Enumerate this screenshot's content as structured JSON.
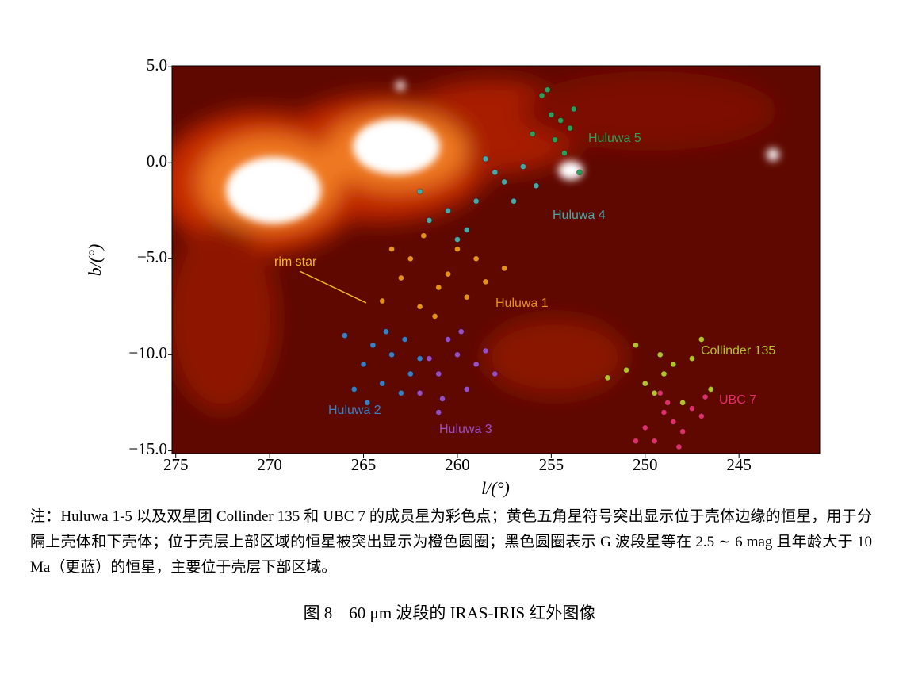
{
  "chart_data": {
    "type": "scatter",
    "xlabel": "l/(°)",
    "ylabel": "b/(°)",
    "xlim": [
      275.2,
      240.7
    ],
    "ylim": [
      -15.15,
      5.05
    ],
    "xticks": [
      275,
      270,
      265,
      260,
      255,
      250,
      245
    ],
    "yticks": [
      {
        "value": 5,
        "label": "5.0"
      },
      {
        "value": 0,
        "label": "0.0"
      },
      {
        "value": -5,
        "label": "−5.0"
      },
      {
        "value": -10,
        "label": "−10.0"
      },
      {
        "value": -15,
        "label": "−15.0"
      }
    ],
    "annotations": [
      "rim star"
    ],
    "series": [
      {
        "name": "Huluwa 1",
        "color": "#e8901a",
        "x": [
          262.5,
          261,
          260,
          259.5,
          263,
          261.8,
          260.5,
          258.5,
          262,
          264,
          259,
          261.2,
          257.5,
          263.5
        ],
        "values": [
          -5,
          -6.5,
          -4.5,
          -7,
          -6,
          -3.8,
          -5.8,
          -6.2,
          -7.5,
          -7.2,
          -5,
          -8,
          -5.5,
          -4.5
        ]
      },
      {
        "name": "Huluwa 2",
        "color": "#3a7ec4",
        "x": [
          263.5,
          264.5,
          262.5,
          265,
          263,
          266,
          262,
          264,
          263.8,
          265.5,
          262.8,
          264.8
        ],
        "values": [
          -10,
          -9.5,
          -11,
          -10.5,
          -12,
          -9,
          -10.2,
          -11.5,
          -8.8,
          -11.8,
          -9.2,
          -12.5
        ]
      },
      {
        "name": "Huluwa 3",
        "color": "#9b4dc4",
        "x": [
          260,
          259,
          261,
          260.5,
          258.5,
          261.5,
          259.5,
          260.8,
          258,
          262,
          259.8,
          261
        ],
        "values": [
          -10,
          -10.5,
          -11,
          -9.2,
          -9.8,
          -10.2,
          -11.8,
          -12.3,
          -11,
          -12,
          -8.8,
          -13
        ]
      },
      {
        "name": "Huluwa 4",
        "color": "#4aa8a8",
        "x": [
          259,
          257.5,
          260.5,
          258,
          256.5,
          261.5,
          259.5,
          257,
          262,
          258.5,
          255.8,
          260
        ],
        "values": [
          -2,
          -1,
          -2.5,
          -0.5,
          -0.2,
          -3,
          -3.5,
          -2,
          -1.5,
          0.2,
          -1.2,
          -4
        ]
      },
      {
        "name": "Huluwa 5",
        "color": "#2e9e5a",
        "x": [
          254.5,
          255,
          254,
          255.5,
          253.8,
          254.8,
          256,
          253.5,
          255.2,
          254.3
        ],
        "values": [
          2.2,
          2.5,
          1.8,
          3.5,
          2.8,
          1.2,
          1.5,
          -0.5,
          3.8,
          0.5
        ]
      },
      {
        "name": "Collinder 135",
        "color": "#b5c22a",
        "x": [
          249,
          248.5,
          250,
          247.5,
          249.5,
          251,
          248,
          250.5,
          252,
          246.5,
          249.2,
          247
        ],
        "values": [
          -11,
          -10.5,
          -11.5,
          -10.2,
          -12,
          -10.8,
          -12.5,
          -9.5,
          -11.2,
          -11.8,
          -10,
          -9.2
        ]
      },
      {
        "name": "UBC 7",
        "color": "#e0306a",
        "x": [
          248.5,
          249,
          248,
          247.5,
          249.5,
          248.8,
          250,
          247,
          248.2,
          249.2,
          246.8,
          250.5
        ],
        "values": [
          -13.5,
          -13,
          -14,
          -12.8,
          -14.5,
          -12.5,
          -13.8,
          -13.2,
          -14.8,
          -12,
          -12.2,
          -14.5
        ]
      }
    ]
  },
  "caption": {
    "note": "注：Huluwa 1-5 以及双星团 Collinder 135 和 UBC 7 的成员星为彩色点；黄色五角星符号突出显示位于壳体边缘的恒星，用于分隔上壳体和下壳体；位于壳层上部区域的恒星被突出显示为橙色圆圈；黑色圆圈表示 G 波段星等在 2.5 ∼ 6 mag 且年龄大于 10 Ma（更蓝）的恒星，主要位于壳层下部区域。",
    "figure": "图 8　60 μm 波段的 IRAS-IRIS 红外图像"
  }
}
